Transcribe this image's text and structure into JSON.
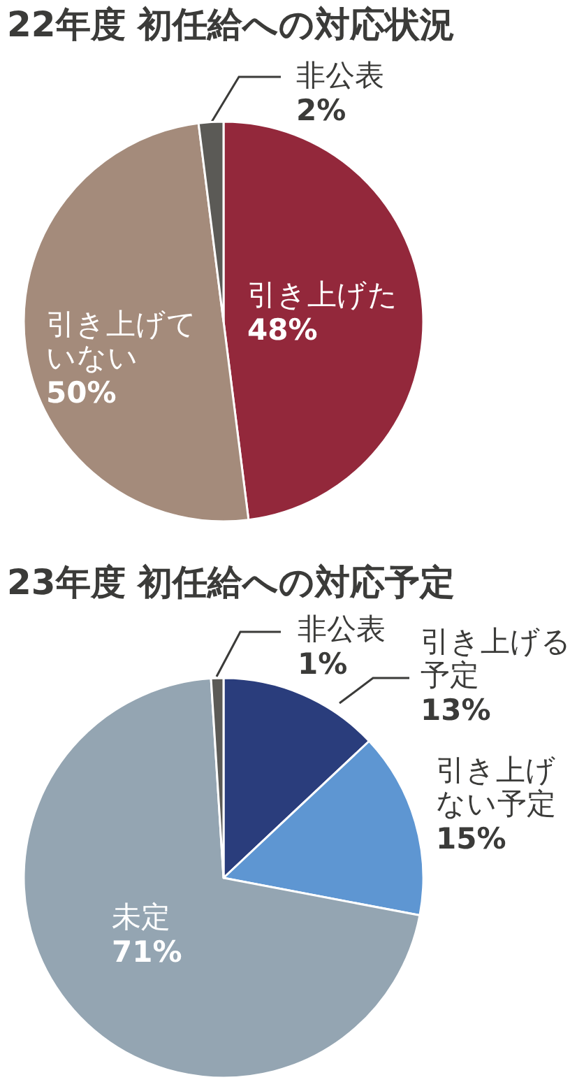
{
  "chart_data": [
    {
      "type": "pie",
      "title": "22年度 初任給への対応状況",
      "categories": [
        "引き上げた",
        "引き上げていない",
        "非公表"
      ],
      "values": [
        48,
        50,
        2
      ],
      "colors": [
        "#93283b",
        "#a48b7b",
        "#5b5a56"
      ],
      "value_labels": [
        "48%",
        "50%",
        "2%"
      ]
    },
    {
      "type": "pie",
      "title": "23年度 初任給への対応予定",
      "categories": [
        "引き上げる予定",
        "引き上げない予定",
        "未定",
        "非公表"
      ],
      "values": [
        13,
        15,
        71,
        1
      ],
      "colors": [
        "#2a3d7c",
        "#5e96d2",
        "#94a5b2",
        "#5b5a56"
      ],
      "value_labels": [
        "13%",
        "15%",
        "71%",
        "1%"
      ]
    }
  ]
}
